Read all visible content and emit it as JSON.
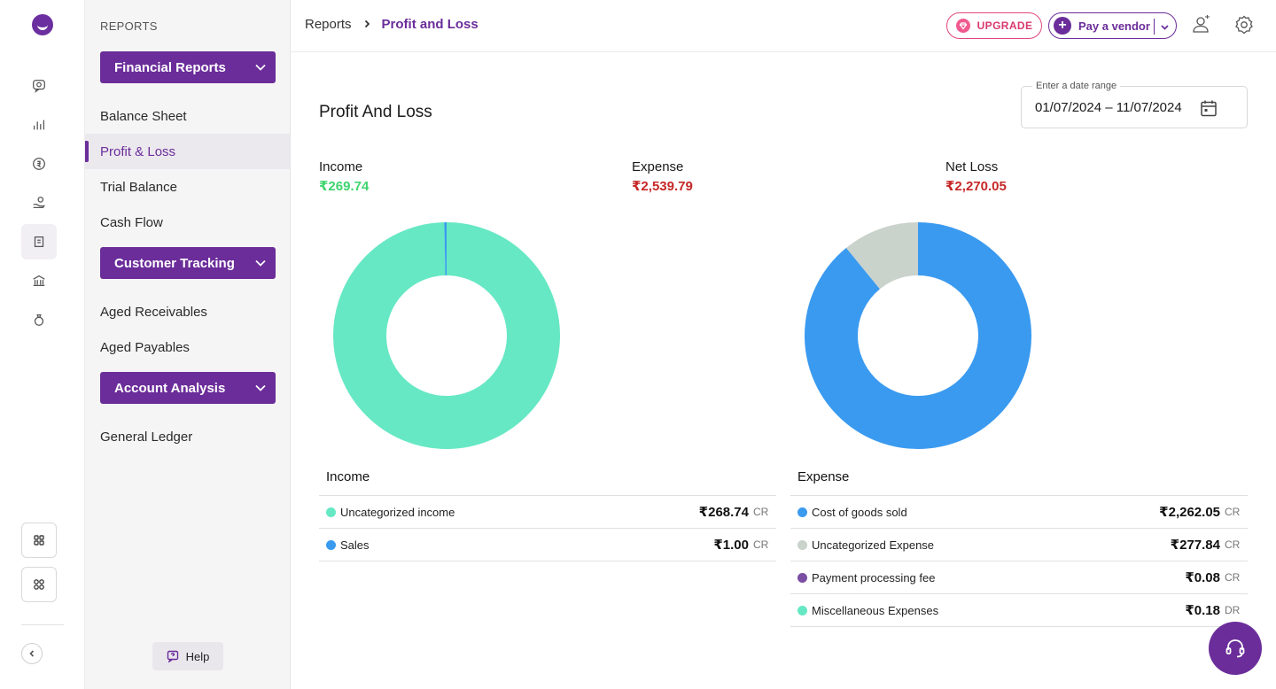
{
  "rail": {
    "icons": [
      "chat-icon",
      "bar-chart-icon",
      "currency-icon",
      "hand-coin-icon",
      "report-icon",
      "bank-icon",
      "money-bag-icon"
    ],
    "bottom_icons": [
      "apps-icon",
      "integrations-icon"
    ]
  },
  "subnav": {
    "section_label": "REPORTS",
    "groups": [
      {
        "label": "Financial Reports",
        "items": [
          "Balance Sheet",
          "Profit & Loss",
          "Trial Balance",
          "Cash Flow"
        ]
      },
      {
        "label": "Customer Tracking",
        "items": [
          "Aged Receivables",
          "Aged Payables"
        ]
      },
      {
        "label": "Account Analysis",
        "items": [
          "General Ledger"
        ]
      }
    ],
    "active_item": "Profit & Loss",
    "help_label": "Help"
  },
  "topbar": {
    "breadcrumb_root": "Reports",
    "breadcrumb_current": "Profit and Loss",
    "upgrade_label": "UPGRADE",
    "pay_vendor_label": "Pay a vendor"
  },
  "page": {
    "title": "Profit And Loss",
    "date_range_label": "Enter a date range",
    "date_range_value": "01/07/2024 – 11/07/2024"
  },
  "kpis": {
    "income": {
      "label": "Income",
      "amount": "₹269.74",
      "color": "#3ed46f"
    },
    "expense": {
      "label": "Expense",
      "amount": "₹2,539.79",
      "color": "#c62828"
    },
    "net": {
      "label": "Net Loss",
      "amount": "₹2,270.05",
      "color": "#c62828"
    }
  },
  "chart_data": [
    {
      "type": "pie",
      "title": "Income",
      "categories": [
        "Uncategorized income",
        "Sales"
      ],
      "values": [
        268.74,
        1.0
      ],
      "colors": [
        "#66e8c4",
        "#3a9af0"
      ]
    },
    {
      "type": "pie",
      "title": "Expense",
      "categories": [
        "Cost of goods sold",
        "Uncategorized Expense",
        "Payment processing fee",
        "Miscellaneous Expenses"
      ],
      "values": [
        2262.05,
        277.84,
        0.08,
        0.18
      ],
      "colors": [
        "#3a9af0",
        "#c9d2cb",
        "#7b4ea3",
        "#66e8c4"
      ]
    }
  ],
  "income_table": {
    "header": "Income",
    "rows": [
      {
        "name": "Uncategorized income",
        "amount": "₹268.74",
        "type": "CR",
        "color": "#66e8c4"
      },
      {
        "name": "Sales",
        "amount": "₹1.00",
        "type": "CR",
        "color": "#3a9af0"
      }
    ]
  },
  "expense_table": {
    "header": "Expense",
    "rows": [
      {
        "name": "Cost of goods sold",
        "amount": "₹2,262.05",
        "type": "CR",
        "color": "#3a9af0"
      },
      {
        "name": "Uncategorized Expense",
        "amount": "₹277.84",
        "type": "CR",
        "color": "#c9d2cb"
      },
      {
        "name": "Payment processing fee",
        "amount": "₹0.08",
        "type": "CR",
        "color": "#7b4ea3"
      },
      {
        "name": "Miscellaneous Expenses",
        "amount": "₹0.18",
        "type": "DR",
        "color": "#66e8c4"
      }
    ]
  }
}
